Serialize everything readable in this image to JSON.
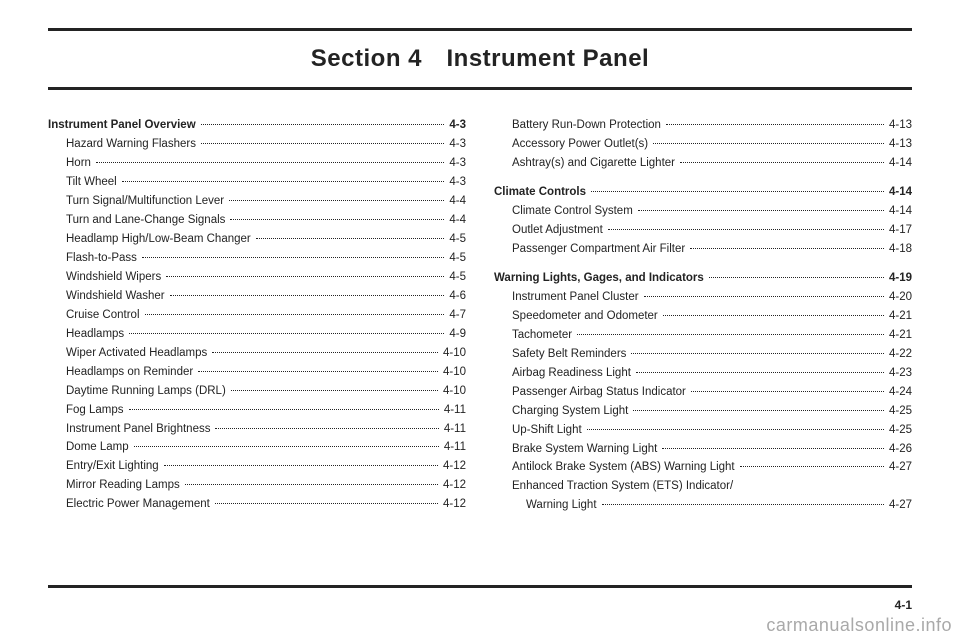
{
  "section_title": "Section 4 Instrument Panel",
  "page_number": "4-1",
  "watermark": "carmanualsonline.info",
  "left_col": [
    {
      "label": "Instrument Panel Overview",
      "page": "4-3",
      "level": "top-level"
    },
    {
      "label": "Hazard Warning Flashers",
      "page": "4-3",
      "level": "sub"
    },
    {
      "label": "Horn",
      "page": "4-3",
      "level": "sub"
    },
    {
      "label": "Tilt Wheel",
      "page": "4-3",
      "level": "sub"
    },
    {
      "label": "Turn Signal/Multifunction Lever",
      "page": "4-4",
      "level": "sub"
    },
    {
      "label": "Turn and Lane-Change Signals",
      "page": "4-4",
      "level": "sub"
    },
    {
      "label": "Headlamp High/Low-Beam Changer",
      "page": "4-5",
      "level": "sub"
    },
    {
      "label": "Flash-to-Pass",
      "page": "4-5",
      "level": "sub"
    },
    {
      "label": "Windshield Wipers",
      "page": "4-5",
      "level": "sub"
    },
    {
      "label": "Windshield Washer",
      "page": "4-6",
      "level": "sub"
    },
    {
      "label": "Cruise Control",
      "page": "4-7",
      "level": "sub"
    },
    {
      "label": "Headlamps",
      "page": "4-9",
      "level": "sub"
    },
    {
      "label": "Wiper Activated Headlamps",
      "page": "4-10",
      "level": "sub"
    },
    {
      "label": "Headlamps on Reminder",
      "page": "4-10",
      "level": "sub"
    },
    {
      "label": "Daytime Running Lamps (DRL)",
      "page": "4-10",
      "level": "sub"
    },
    {
      "label": "Fog Lamps",
      "page": "4-11",
      "level": "sub"
    },
    {
      "label": "Instrument Panel Brightness",
      "page": "4-11",
      "level": "sub"
    },
    {
      "label": "Dome Lamp",
      "page": "4-11",
      "level": "sub"
    },
    {
      "label": "Entry/Exit Lighting",
      "page": "4-12",
      "level": "sub"
    },
    {
      "label": "Mirror Reading Lamps",
      "page": "4-12",
      "level": "sub"
    },
    {
      "label": "Electric Power Management",
      "page": "4-12",
      "level": "sub"
    }
  ],
  "right_col": [
    {
      "label": "Battery Run-Down Protection",
      "page": "4-13",
      "level": "sub"
    },
    {
      "label": "Accessory Power Outlet(s)",
      "page": "4-13",
      "level": "sub"
    },
    {
      "label": "Ashtray(s) and Cigarette Lighter",
      "page": "4-14",
      "level": "sub"
    },
    {
      "label": "Climate Controls",
      "page": "4-14",
      "level": "top-level",
      "gap": true
    },
    {
      "label": "Climate Control System",
      "page": "4-14",
      "level": "sub"
    },
    {
      "label": "Outlet Adjustment",
      "page": "4-17",
      "level": "sub"
    },
    {
      "label": "Passenger Compartment Air Filter",
      "page": "4-18",
      "level": "sub"
    },
    {
      "label": "Warning Lights, Gages, and Indicators",
      "page": "4-19",
      "level": "top-level",
      "gap": true
    },
    {
      "label": "Instrument Panel Cluster",
      "page": "4-20",
      "level": "sub"
    },
    {
      "label": "Speedometer and Odometer",
      "page": "4-21",
      "level": "sub"
    },
    {
      "label": "Tachometer",
      "page": "4-21",
      "level": "sub"
    },
    {
      "label": "Safety Belt Reminders",
      "page": "4-22",
      "level": "sub"
    },
    {
      "label": "Airbag Readiness Light",
      "page": "4-23",
      "level": "sub"
    },
    {
      "label": "Passenger Airbag Status Indicator",
      "page": "4-24",
      "level": "sub"
    },
    {
      "label": "Charging System Light",
      "page": "4-25",
      "level": "sub"
    },
    {
      "label": "Up-Shift Light",
      "page": "4-25",
      "level": "sub"
    },
    {
      "label": "Brake System Warning Light",
      "page": "4-26",
      "level": "sub"
    },
    {
      "label": "Antilock Brake System (ABS) Warning Light",
      "page": "4-27",
      "level": "sub"
    },
    {
      "label": "Enhanced Traction System (ETS) Indicator/",
      "page": "",
      "level": "sub",
      "nolead": true
    },
    {
      "label": "Warning Light",
      "page": "4-27",
      "level": "sub2"
    }
  ]
}
